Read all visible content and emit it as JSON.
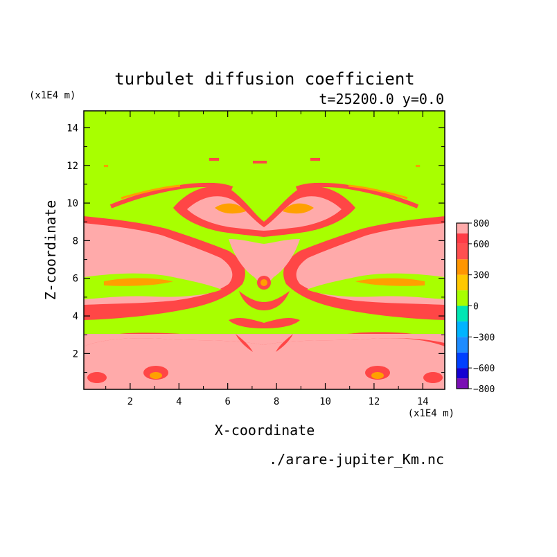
{
  "chart_data": {
    "type": "heatmap",
    "title": "turbulet diffusion coefficient",
    "subtitle": "t=25200.0 y=0.0",
    "xlabel": "X-coordinate",
    "ylabel": "Z-coordinate",
    "x_unit": "(x1E4 m)",
    "y_unit": "(x1E4 m)",
    "xlim": [
      0.1,
      14.9
    ],
    "ylim": [
      0.1,
      14.9
    ],
    "x_ticks": [
      2,
      4,
      6,
      8,
      10,
      12,
      14
    ],
    "y_ticks": [
      2,
      4,
      6,
      8,
      10,
      12,
      14
    ],
    "colorbar": {
      "ticks": [
        800,
        600,
        300,
        0,
        -300,
        -600,
        -800
      ],
      "levels": [
        {
          "from": -800,
          "to": -700,
          "color": "#7a0fb4"
        },
        {
          "from": -700,
          "to": -600,
          "color": "#1400d2"
        },
        {
          "from": -600,
          "to": -450,
          "color": "#0040ff"
        },
        {
          "from": -450,
          "to": -300,
          "color": "#1e8cff"
        },
        {
          "from": -300,
          "to": -150,
          "color": "#00b4ff"
        },
        {
          "from": -150,
          "to": 0,
          "color": "#00e6b4"
        },
        {
          "from": 0,
          "to": 150,
          "color": "#a8ff00"
        },
        {
          "from": 150,
          "to": 300,
          "color": "#ffc800"
        },
        {
          "from": 300,
          "to": 450,
          "color": "#ff9600"
        },
        {
          "from": 450,
          "to": 600,
          "color": "#ff5050"
        },
        {
          "from": 600,
          "to": 700,
          "color": "#ff3c46"
        },
        {
          "from": 700,
          "to": 800,
          "color": "#ffaaaa"
        }
      ]
    },
    "colors": {
      "background_level": "#a8ff00",
      "high": "#ffa8a8",
      "mid": "#ff4040",
      "low": "#ffa000"
    }
  },
  "footer": {
    "filename": "./arare-jupiter_Km.nc"
  }
}
